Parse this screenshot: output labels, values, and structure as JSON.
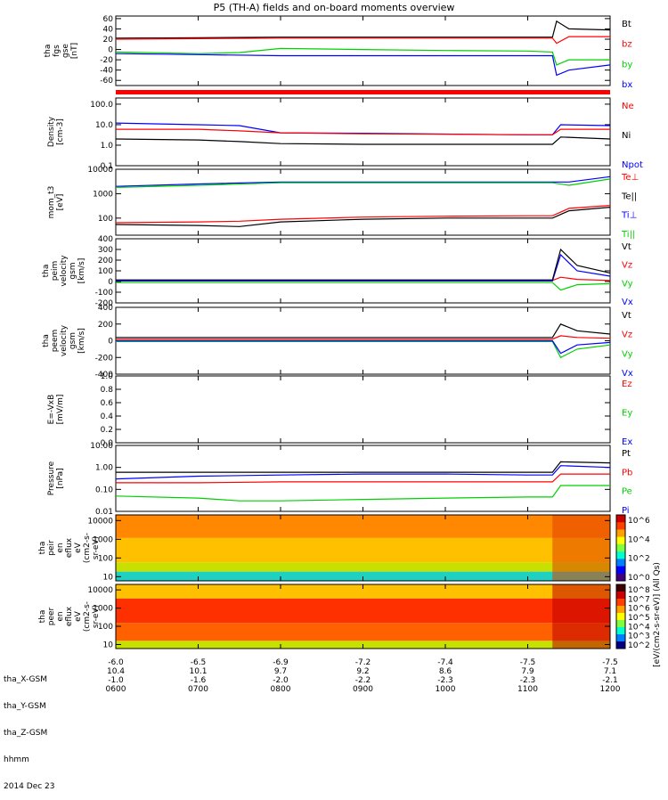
{
  "title": "P5 (TH-A) fields and on-board moments overview",
  "date_label": "2014 Dec 23",
  "footer_rows": [
    {
      "label": "tha_X-GSM",
      "values": [
        "-6.0",
        "-6.5",
        "-6.9",
        "-7.2",
        "-7.4",
        "-7.5",
        "-7.5"
      ]
    },
    {
      "label": "tha_Y-GSM",
      "values": [
        "10.4",
        "10.1",
        "9.7",
        "9.2",
        "8.6",
        "7.9",
        "7.1"
      ]
    },
    {
      "label": "tha_Z-GSM",
      "values": [
        "-1.0",
        "-1.6",
        "-2.0",
        "-2.2",
        "-2.3",
        "-2.3",
        "-2.1"
      ]
    },
    {
      "label": "hhmm",
      "values": [
        "0600",
        "0700",
        "0800",
        "0900",
        "1000",
        "1100",
        "1200"
      ]
    }
  ],
  "colors": {
    "black": "#000000",
    "red": "#ff0000",
    "green": "#00d000",
    "blue": "#0000ff"
  },
  "colorbar_label": "[eV/(cm2-s-sr-eV)] (All Qs)",
  "chart_data": [
    {
      "type": "line",
      "ylabel": [
        "tha",
        "fgs",
        "gse",
        "[nT]"
      ],
      "ylim": [
        -70,
        65
      ],
      "yticks": [
        "60",
        "40",
        "20",
        "0",
        "-20",
        "-40",
        "-60"
      ],
      "ytick_values": [
        60,
        40,
        20,
        0,
        -20,
        -40,
        -60
      ],
      "legend": [
        {
          "name": "Bt",
          "color": "black"
        },
        {
          "name": "bz",
          "color": "red"
        },
        {
          "name": "by",
          "color": "green"
        },
        {
          "name": "bx",
          "color": "blue"
        }
      ],
      "series": [
        {
          "name": "Bt",
          "color": "black",
          "x": [
            6,
            7,
            8,
            9,
            10,
            11,
            11.3,
            11.35,
            11.5,
            12
          ],
          "y": [
            22,
            23,
            24,
            24,
            24,
            24,
            24,
            55,
            40,
            38
          ]
        },
        {
          "name": "bz",
          "color": "red",
          "x": [
            6,
            7,
            8,
            9,
            10,
            11,
            11.3,
            11.35,
            11.5,
            12
          ],
          "y": [
            20,
            21,
            22,
            22,
            22,
            22,
            22,
            12,
            25,
            25
          ]
        },
        {
          "name": "by",
          "color": "green",
          "x": [
            6,
            7,
            7.5,
            8,
            9,
            10,
            11,
            11.3,
            11.35,
            11.5,
            12
          ],
          "y": [
            -5,
            -8,
            -6,
            2,
            0,
            -2,
            -3,
            -5,
            -30,
            -20,
            -20
          ]
        },
        {
          "name": "bx",
          "color": "blue",
          "x": [
            6,
            7,
            8,
            9,
            10,
            11,
            11.3,
            11.35,
            11.5,
            12
          ],
          "y": [
            -8,
            -10,
            -12,
            -12,
            -12,
            -12,
            -12,
            -50,
            -40,
            -30
          ]
        }
      ]
    },
    {
      "type": "line",
      "ylabel": [
        "Density",
        "[cm-3]"
      ],
      "log": true,
      "ylim": [
        0.1,
        200
      ],
      "yticks": [
        "100.0",
        "10.0",
        "1.0",
        "0.1"
      ],
      "ytick_values": [
        100,
        10,
        1,
        0.1
      ],
      "legend": [
        {
          "name": "Ne",
          "color": "red"
        },
        {
          "name": "Ni",
          "color": "black"
        },
        {
          "name": "Npot",
          "color": "blue"
        }
      ],
      "series": [
        {
          "name": "Npot",
          "color": "blue",
          "x": [
            6,
            7,
            7.5,
            8,
            9,
            10,
            11,
            11.3,
            11.4,
            12
          ],
          "y": [
            12,
            10,
            9,
            4,
            3.8,
            3.5,
            3.2,
            3.2,
            10,
            9
          ]
        },
        {
          "name": "Ne",
          "color": "red",
          "x": [
            6,
            7,
            7.5,
            8,
            9,
            10,
            11,
            11.3,
            11.4,
            12
          ],
          "y": [
            6,
            6,
            5,
            4,
            3.6,
            3.4,
            3.2,
            3.2,
            6,
            6
          ]
        },
        {
          "name": "Ni",
          "color": "black",
          "x": [
            6,
            7,
            7.5,
            8,
            9,
            10,
            11,
            11.3,
            11.4,
            12
          ],
          "y": [
            2,
            1.8,
            1.5,
            1.2,
            1.1,
            1.1,
            1.1,
            1.1,
            2.5,
            2
          ]
        }
      ]
    },
    {
      "type": "line",
      "ylabel": [
        "mom_t3",
        "[eV]"
      ],
      "log": true,
      "ylim": [
        20,
        10000
      ],
      "yticks": [
        "10000",
        "1000",
        "100"
      ],
      "ytick_values": [
        10000,
        1000,
        100
      ],
      "legend": [
        {
          "name": "Te⊥",
          "color": "red"
        },
        {
          "name": "Te||",
          "color": "black"
        },
        {
          "name": "Ti⊥",
          "color": "blue"
        },
        {
          "name": "Ti||",
          "color": "green"
        }
      ],
      "series": [
        {
          "name": "Ti⊥",
          "color": "blue",
          "x": [
            6,
            7,
            8,
            9,
            10,
            11,
            11.3,
            11.5,
            12
          ],
          "y": [
            2000,
            2500,
            3000,
            3000,
            3000,
            3000,
            3000,
            3000,
            5000
          ]
        },
        {
          "name": "Ti||",
          "color": "green",
          "x": [
            6,
            7,
            8,
            9,
            10,
            11,
            11.3,
            11.5,
            12
          ],
          "y": [
            1800,
            2200,
            2800,
            2800,
            2800,
            2800,
            2800,
            2200,
            4000
          ]
        },
        {
          "name": "Te⊥",
          "color": "red",
          "x": [
            6,
            7,
            7.5,
            8,
            9,
            10,
            11,
            11.3,
            11.5,
            12
          ],
          "y": [
            65,
            70,
            75,
            90,
            110,
            120,
            125,
            125,
            250,
            330
          ]
        },
        {
          "name": "Te||",
          "color": "black",
          "x": [
            6,
            7,
            7.5,
            8,
            9,
            10,
            11,
            11.3,
            11.5,
            12
          ],
          "y": [
            55,
            50,
            45,
            70,
            90,
            100,
            100,
            100,
            200,
            280
          ]
        }
      ]
    },
    {
      "type": "line",
      "ylabel": [
        "tha",
        "peim",
        "velocity",
        "gsm",
        "[km/s]"
      ],
      "ylim": [
        -200,
        400
      ],
      "yticks": [
        "400",
        "300",
        "200",
        "100",
        "0",
        "-100",
        "-200"
      ],
      "ytick_values": [
        400,
        300,
        200,
        100,
        0,
        -100,
        -200
      ],
      "legend": [
        {
          "name": "Vt",
          "color": "black"
        },
        {
          "name": "Vz",
          "color": "red"
        },
        {
          "name": "Vy",
          "color": "green"
        },
        {
          "name": "Vx",
          "color": "blue"
        }
      ],
      "series": [
        {
          "name": "Vy",
          "color": "green",
          "x": [
            6,
            8,
            10,
            11,
            11.3,
            11.4,
            11.6,
            12
          ],
          "y": [
            -10,
            -10,
            -10,
            -10,
            -10,
            -80,
            -30,
            -20
          ]
        },
        {
          "name": "Vz",
          "color": "red",
          "x": [
            6,
            8,
            10,
            11,
            11.3,
            11.4,
            11.6,
            12
          ],
          "y": [
            10,
            10,
            10,
            10,
            10,
            40,
            20,
            10
          ]
        },
        {
          "name": "Vx",
          "color": "blue",
          "x": [
            6,
            8,
            10,
            11,
            11.3,
            11.4,
            11.6,
            12
          ],
          "y": [
            5,
            5,
            5,
            5,
            5,
            250,
            100,
            50
          ]
        },
        {
          "name": "Vt",
          "color": "black",
          "x": [
            6,
            8,
            10,
            11,
            11.3,
            11.4,
            11.6,
            12
          ],
          "y": [
            15,
            15,
            15,
            15,
            15,
            300,
            150,
            80
          ]
        }
      ]
    },
    {
      "type": "line",
      "ylabel": [
        "tha",
        "peem",
        "velocity",
        "gsm",
        "[km/s]"
      ],
      "ylim": [
        -400,
        400
      ],
      "yticks": [
        "400",
        "200",
        "0",
        "-200",
        "-400"
      ],
      "ytick_values": [
        400,
        200,
        0,
        -200,
        -400
      ],
      "legend": [
        {
          "name": "Vt",
          "color": "black"
        },
        {
          "name": "Vz",
          "color": "red"
        },
        {
          "name": "Vy",
          "color": "green"
        },
        {
          "name": "Vx",
          "color": "blue"
        }
      ],
      "series": [
        {
          "name": "Vy",
          "color": "green",
          "x": [
            6,
            8,
            10,
            11,
            11.3,
            11.4,
            11.6,
            12
          ],
          "y": [
            -10,
            -10,
            -10,
            -10,
            -10,
            -200,
            -100,
            -50
          ]
        },
        {
          "name": "Vx",
          "color": "blue",
          "x": [
            6,
            8,
            10,
            11,
            11.3,
            11.4,
            11.6,
            12
          ],
          "y": [
            0,
            0,
            0,
            0,
            0,
            -150,
            -50,
            -20
          ]
        },
        {
          "name": "Vz",
          "color": "red",
          "x": [
            6,
            8,
            10,
            11,
            11.3,
            11.4,
            11.6,
            12
          ],
          "y": [
            20,
            20,
            20,
            20,
            20,
            60,
            40,
            30
          ]
        },
        {
          "name": "Vt",
          "color": "black",
          "x": [
            6,
            8,
            10,
            11,
            11.3,
            11.4,
            11.6,
            12
          ],
          "y": [
            40,
            40,
            40,
            40,
            40,
            200,
            120,
            80
          ]
        }
      ]
    },
    {
      "type": "line",
      "ylabel": [
        "E=-VxB",
        "[mV/m]"
      ],
      "ylim": [
        0,
        1.0
      ],
      "yticks": [
        "1.0",
        "0.8",
        "0.6",
        "0.4",
        "0.2",
        "0.0"
      ],
      "ytick_values": [
        1.0,
        0.8,
        0.6,
        0.4,
        0.2,
        0.0
      ],
      "legend": [
        {
          "name": "Ez",
          "color": "red"
        },
        {
          "name": "Ey",
          "color": "green"
        },
        {
          "name": "Ex",
          "color": "blue"
        }
      ],
      "series": []
    },
    {
      "type": "line",
      "ylabel": [
        "Pressure",
        "[nPa]"
      ],
      "log": true,
      "ylim": [
        0.01,
        10
      ],
      "yticks": [
        "10.00",
        "1.00",
        "0.10",
        "0.01"
      ],
      "ytick_values": [
        10,
        1,
        0.1,
        0.01
      ],
      "legend": [
        {
          "name": "Pt",
          "color": "black"
        },
        {
          "name": "Pb",
          "color": "red"
        },
        {
          "name": "Pe",
          "color": "green"
        },
        {
          "name": "Pi",
          "color": "blue"
        }
      ],
      "series": [
        {
          "name": "Pt",
          "color": "black",
          "x": [
            6,
            7,
            8,
            9,
            10,
            11,
            11.3,
            11.4,
            12
          ],
          "y": [
            0.6,
            0.6,
            0.6,
            0.6,
            0.6,
            0.6,
            0.6,
            1.8,
            1.6
          ]
        },
        {
          "name": "Pi",
          "color": "blue",
          "x": [
            6,
            7,
            8,
            9,
            10,
            11,
            11.3,
            11.4,
            12
          ],
          "y": [
            0.3,
            0.4,
            0.45,
            0.5,
            0.5,
            0.45,
            0.45,
            1.2,
            1.0
          ]
        },
        {
          "name": "Pb",
          "color": "red",
          "x": [
            6,
            7,
            8,
            9,
            10,
            11,
            11.3,
            11.4,
            12
          ],
          "y": [
            0.2,
            0.2,
            0.22,
            0.22,
            0.22,
            0.22,
            0.22,
            0.5,
            0.5
          ]
        },
        {
          "name": "Pe",
          "color": "green",
          "x": [
            6,
            7,
            7.5,
            8,
            9,
            10,
            11,
            11.3,
            11.4,
            12
          ],
          "y": [
            0.05,
            0.04,
            0.03,
            0.03,
            0.035,
            0.04,
            0.045,
            0.045,
            0.15,
            0.15
          ]
        }
      ]
    },
    {
      "type": "heatmap",
      "ylabel": [
        "tha",
        "peir",
        "en",
        "eflux",
        "eV",
        "(cm2-s-",
        "sr-eV)"
      ],
      "log": true,
      "ylim": [
        6,
        20000
      ],
      "yticks": [
        "10000",
        "1000",
        "100",
        "10"
      ],
      "ytick_values": [
        10000,
        1000,
        100,
        10
      ],
      "colorbar_ticks": [
        "10^6",
        "10^4",
        "10^2",
        "10^0"
      ]
    },
    {
      "type": "heatmap",
      "ylabel": [
        "tha",
        "peer",
        "en",
        "eflux",
        "eV",
        "(cm2-s-",
        "sr-eV)"
      ],
      "log": true,
      "ylim": [
        6,
        20000
      ],
      "yticks": [
        "10000",
        "1000",
        "100",
        "10"
      ],
      "ytick_values": [
        10000,
        1000,
        100,
        10
      ],
      "colorbar_ticks": [
        "10^8",
        "10^7",
        "10^6",
        "10^5",
        "10^4",
        "10^3",
        "10^2"
      ]
    }
  ]
}
